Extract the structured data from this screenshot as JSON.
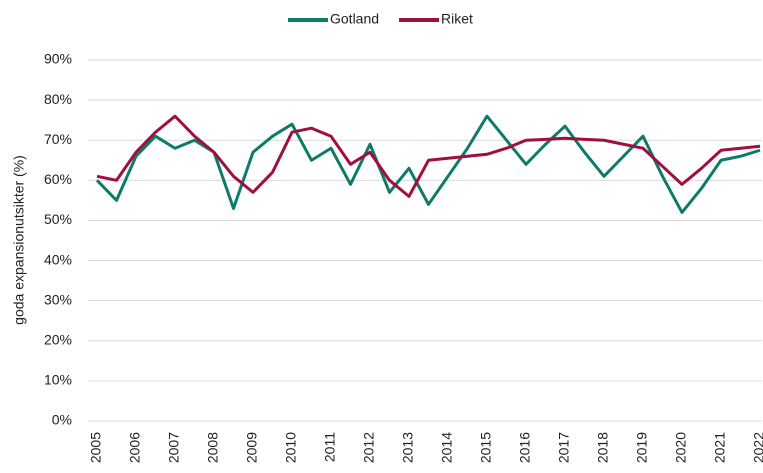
{
  "chart_data": {
    "type": "line",
    "y_label": "goda expansionutsikter (%)",
    "categories": [
      "2005",
      null,
      "2006",
      null,
      "2007",
      null,
      "2008",
      null,
      "2009",
      null,
      "2010",
      null,
      "2011",
      null,
      "2012",
      null,
      "2013",
      null,
      "2014",
      null,
      "2015",
      null,
      "2016",
      null,
      "2017",
      null,
      "2018",
      null,
      "2019",
      null,
      "2020",
      null,
      "2021",
      null,
      "2022"
    ],
    "series": [
      {
        "name": "Gotland",
        "color": "#0e7a6a",
        "values": [
          60,
          55,
          66,
          71,
          68,
          70,
          67,
          53,
          67,
          71,
          74,
          65,
          68,
          59,
          69,
          57,
          63,
          54,
          61,
          68,
          76,
          70,
          64,
          69,
          73.5,
          67,
          61,
          66,
          71,
          61,
          52,
          58,
          65,
          66,
          67.5
        ]
      },
      {
        "name": "Riket",
        "color": "#a0103f",
        "values": [
          61,
          60,
          67,
          72,
          76,
          71,
          67,
          61,
          57,
          62,
          72,
          73,
          71,
          64,
          67,
          60,
          56,
          65,
          65.5,
          66,
          66.5,
          68,
          70,
          70.2,
          70.5,
          70.2,
          70,
          69,
          68,
          63.5,
          59,
          63,
          67.5,
          68,
          68.5
        ]
      }
    ],
    "ylim": [
      0,
      90
    ],
    "yticks": [
      {
        "value": 0,
        "label": "0%"
      },
      {
        "value": 10,
        "label": "10%"
      },
      {
        "value": 20,
        "label": "20%"
      },
      {
        "value": 30,
        "label": "30%"
      },
      {
        "value": 40,
        "label": "40%"
      },
      {
        "value": 50,
        "label": "50%"
      },
      {
        "value": 60,
        "label": "60%"
      },
      {
        "value": 70,
        "label": "70%"
      },
      {
        "value": 80,
        "label": "80%"
      },
      {
        "value": 90,
        "label": "90%"
      }
    ],
    "grid": true,
    "legend": "top"
  }
}
